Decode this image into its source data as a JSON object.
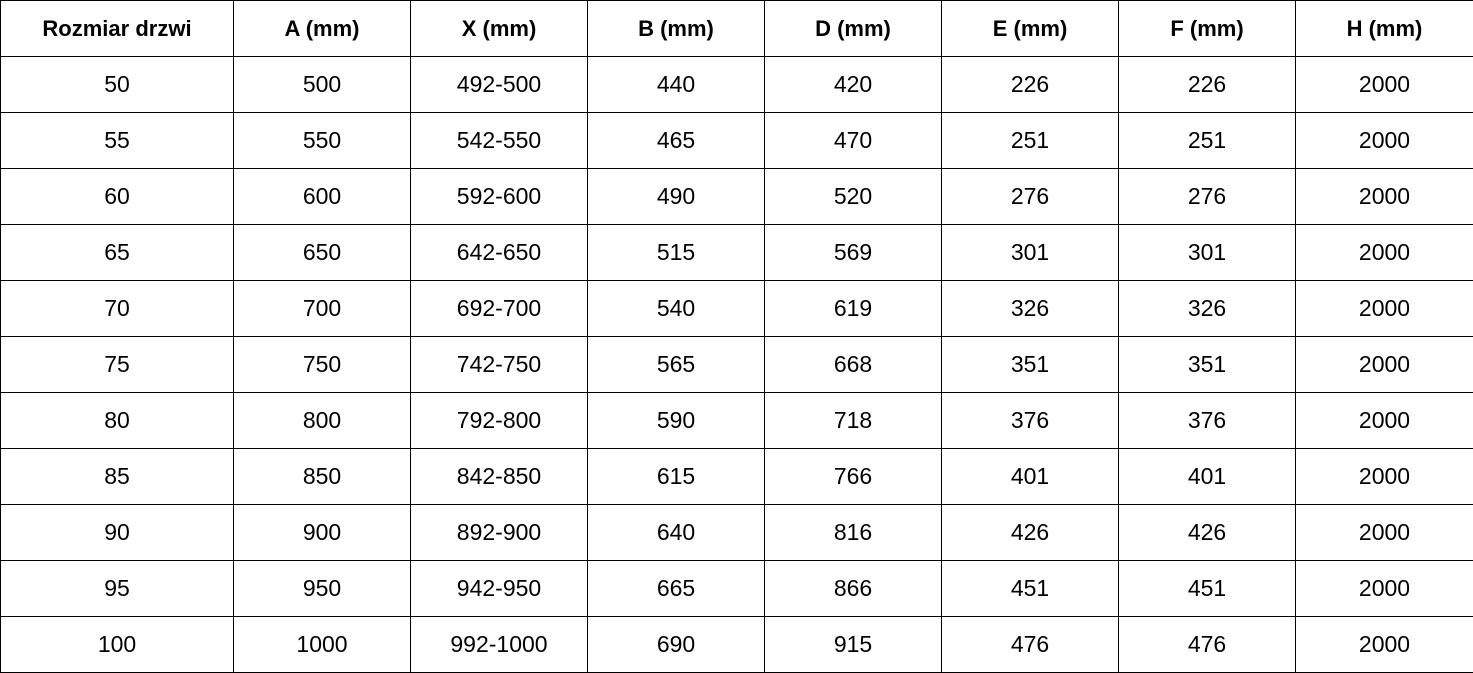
{
  "table": {
    "headers": [
      "Rozmiar drzwi",
      "A (mm)",
      "X (mm)",
      "B (mm)",
      "D (mm)",
      "E (mm)",
      "F (mm)",
      "H (mm)"
    ],
    "rows": [
      [
        "50",
        "500",
        "492-500",
        "440",
        "420",
        "226",
        "226",
        "2000"
      ],
      [
        "55",
        "550",
        "542-550",
        "465",
        "470",
        "251",
        "251",
        "2000"
      ],
      [
        "60",
        "600",
        "592-600",
        "490",
        "520",
        "276",
        "276",
        "2000"
      ],
      [
        "65",
        "650",
        "642-650",
        "515",
        "569",
        "301",
        "301",
        "2000"
      ],
      [
        "70",
        "700",
        "692-700",
        "540",
        "619",
        "326",
        "326",
        "2000"
      ],
      [
        "75",
        "750",
        "742-750",
        "565",
        "668",
        "351",
        "351",
        "2000"
      ],
      [
        "80",
        "800",
        "792-800",
        "590",
        "718",
        "376",
        "376",
        "2000"
      ],
      [
        "85",
        "850",
        "842-850",
        "615",
        "766",
        "401",
        "401",
        "2000"
      ],
      [
        "90",
        "900",
        "892-900",
        "640",
        "816",
        "426",
        "426",
        "2000"
      ],
      [
        "95",
        "950",
        "942-950",
        "665",
        "866",
        "451",
        "451",
        "2000"
      ],
      [
        "100",
        "1000",
        "992-1000",
        "690",
        "915",
        "476",
        "476",
        "2000"
      ]
    ]
  }
}
